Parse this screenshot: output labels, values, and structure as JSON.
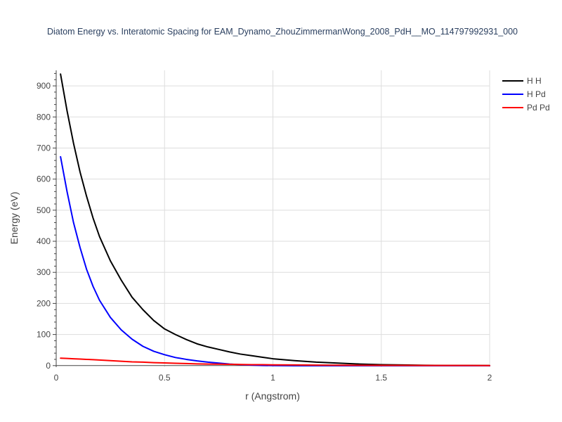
{
  "chart_data": {
    "type": "line",
    "title": "Diatom Energy vs. Interatomic Spacing for EAM_Dynamo_ZhouZimmermanWong_2008_PdH__MO_114797992931_000",
    "xlabel": "r (Angstrom)",
    "ylabel": "Energy (eV)",
    "xlim": [
      0,
      2
    ],
    "ylim": [
      -5,
      950
    ],
    "x_ticks": [
      0,
      0.5,
      1,
      1.5,
      2
    ],
    "x_tick_labels": [
      "0",
      "0.5",
      "1",
      "1.5",
      "2"
    ],
    "y_ticks": [
      0,
      100,
      200,
      300,
      400,
      500,
      600,
      700,
      800,
      900
    ],
    "y_tick_labels": [
      "0",
      "100",
      "200",
      "300",
      "400",
      "500",
      "600",
      "700",
      "800",
      "900"
    ],
    "grid": true,
    "legend_position": "top-right",
    "x": [
      0.02,
      0.05,
      0.08,
      0.11,
      0.14,
      0.17,
      0.2,
      0.25,
      0.3,
      0.35,
      0.4,
      0.45,
      0.5,
      0.55,
      0.6,
      0.65,
      0.7,
      0.75,
      0.8,
      0.85,
      0.9,
      0.95,
      1.0,
      1.1,
      1.2,
      1.3,
      1.4,
      1.5,
      1.6,
      1.7,
      1.8,
      1.9,
      2.0
    ],
    "series": [
      {
        "name": "H H",
        "color": "#000000",
        "values": [
          938,
          820,
          715,
          623,
          545,
          475,
          415,
          337,
          275,
          220,
          180,
          145,
          118,
          100,
          84,
          70,
          60,
          52,
          44,
          37,
          32,
          27,
          22,
          16,
          11,
          8,
          5,
          3,
          2,
          1,
          0.5,
          0.3,
          0.2
        ]
      },
      {
        "name": "H Pd",
        "color": "#0000ff",
        "values": [
          672,
          560,
          460,
          380,
          310,
          255,
          210,
          155,
          115,
          85,
          62,
          46,
          35,
          26,
          20,
          15,
          11,
          8,
          5,
          3,
          1.5,
          0.5,
          0,
          -0.5,
          -0.5,
          -0.5,
          -0.5,
          -0.5,
          -0.5,
          -0.5,
          -0.5,
          -0.5,
          -0.5
        ]
      },
      {
        "name": "Pd Pd",
        "color": "#ff0000",
        "values": [
          24,
          23,
          22,
          21,
          20,
          19,
          18,
          16,
          14,
          12,
          11,
          9.5,
          8.5,
          7.5,
          6.5,
          5.5,
          5,
          4.5,
          4,
          3.5,
          3,
          2.8,
          2.5,
          2,
          1.6,
          1.3,
          1,
          0.8,
          0.6,
          0.5,
          0.4,
          0.3,
          0.2
        ]
      }
    ]
  }
}
